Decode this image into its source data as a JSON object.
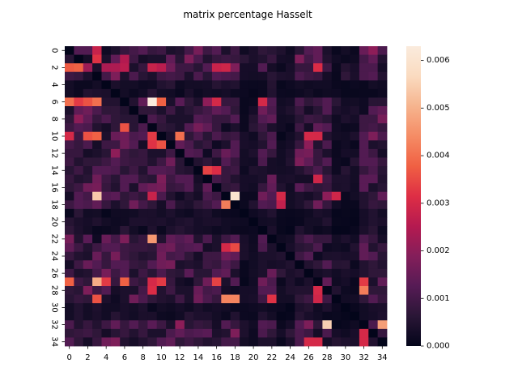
{
  "chart_data": {
    "type": "heatmap",
    "title": "matrix percentage Hasselt",
    "xlabel": "",
    "ylabel": "",
    "x_tick_labels": [
      "0",
      "2",
      "4",
      "6",
      "8",
      "10",
      "12",
      "14",
      "16",
      "18",
      "20",
      "22",
      "24",
      "26",
      "28",
      "30",
      "32",
      "34"
    ],
    "y_tick_labels": [
      "0",
      "2",
      "4",
      "6",
      "8",
      "10",
      "12",
      "14",
      "16",
      "18",
      "20",
      "22",
      "24",
      "26",
      "28",
      "30",
      "32",
      "34"
    ],
    "colorbar": {
      "min": 0.0,
      "max": 0.0063,
      "tick_labels": [
        "0.000",
        "0.001",
        "0.002",
        "0.003",
        "0.004",
        "0.005",
        "0.006"
      ],
      "tick_values": [
        0.0,
        0.001,
        0.002,
        0.003,
        0.004,
        0.005,
        0.006
      ],
      "colormap": "rocket",
      "colormap_stops": [
        "#03051a",
        "#2a1636",
        "#561b55",
        "#841e5a",
        "#b51a50",
        "#de2e45",
        "#f06043",
        "#f58c65",
        "#f6b48e",
        "#fadbc0",
        "#faebdd"
      ]
    },
    "rows": 35,
    "cols": 35,
    "base_values": [
      0.0016,
      0.0008,
      0.0012,
      0.002,
      0.0011,
      0.001,
      0.0018,
      0.0006,
      0.0011,
      0.0014,
      0.0017,
      0.0012,
      0.0008,
      0.0009,
      0.0011,
      0.0007,
      0.0012,
      0.0014,
      0.0011,
      0.0009,
      0.0004,
      0.0009,
      0.0012,
      0.0007,
      0.0008,
      0.0005,
      0.0006,
      0.0008,
      0.0008,
      0.0005,
      0.0005,
      0.0003,
      0.0012,
      0.0008,
      0.0011,
      0.0008,
      0.0011,
      0.0013,
      0.0009,
      0.0012,
      0.0007,
      0.0007,
      0.0008,
      0.0004,
      0.0002,
      0.0003,
      0.0005,
      0.0003,
      0.0006,
      0.0004,
      0.0005,
      0.0004,
      0.0007,
      0.0004,
      0.0009,
      0.0004,
      0.0007,
      0.0009,
      0.0004,
      0.0006,
      0.0005,
      0.0003,
      0.0012,
      0.0009,
      0.0015,
      0.0006,
      0.0008,
      0.0014,
      0.0016,
      0.0007,
      0.0012,
      0.001
    ],
    "highlights": [
      [
        0,
        3,
        0.0028
      ],
      [
        1,
        3,
        0.0032
      ],
      [
        1,
        6,
        0.0025
      ],
      [
        2,
        0,
        0.0037
      ],
      [
        2,
        1,
        0.0038
      ],
      [
        2,
        2,
        0.0022
      ],
      [
        2,
        4,
        0.0024
      ],
      [
        2,
        5,
        0.0024
      ],
      [
        2,
        6,
        0.0026
      ],
      [
        2,
        9,
        0.0028
      ],
      [
        2,
        10,
        0.0026
      ],
      [
        2,
        16,
        0.0028
      ],
      [
        2,
        17,
        0.0029
      ],
      [
        2,
        27,
        0.0031
      ],
      [
        6,
        0,
        0.004
      ],
      [
        6,
        1,
        0.0033
      ],
      [
        6,
        2,
        0.0036
      ],
      [
        6,
        3,
        0.004
      ],
      [
        6,
        9,
        0.0063
      ],
      [
        6,
        10,
        0.0038
      ],
      [
        6,
        16,
        0.003
      ],
      [
        6,
        21,
        0.003
      ],
      [
        9,
        6,
        0.0036
      ],
      [
        10,
        0,
        0.003
      ],
      [
        10,
        2,
        0.0036
      ],
      [
        10,
        3,
        0.0038
      ],
      [
        10,
        9,
        0.0033
      ],
      [
        10,
        12,
        0.004
      ],
      [
        10,
        26,
        0.003
      ],
      [
        10,
        27,
        0.003
      ],
      [
        11,
        9,
        0.0032
      ],
      [
        11,
        10,
        0.0036
      ],
      [
        14,
        15,
        0.0034
      ],
      [
        14,
        16,
        0.0031
      ],
      [
        15,
        27,
        0.0029
      ],
      [
        17,
        3,
        0.0054
      ],
      [
        17,
        18,
        0.006
      ],
      [
        17,
        9,
        0.0028
      ],
      [
        17,
        23,
        0.003
      ],
      [
        17,
        29,
        0.0029
      ],
      [
        18,
        17,
        0.0042
      ],
      [
        18,
        23,
        0.0027
      ],
      [
        22,
        9,
        0.0046
      ],
      [
        23,
        18,
        0.0035
      ],
      [
        23,
        17,
        0.003
      ],
      [
        27,
        0,
        0.0038
      ],
      [
        27,
        3,
        0.0049
      ],
      [
        27,
        4,
        0.0033
      ],
      [
        27,
        6,
        0.0038
      ],
      [
        27,
        9,
        0.003
      ],
      [
        27,
        10,
        0.0033
      ],
      [
        27,
        16,
        0.0034
      ],
      [
        27,
        32,
        0.0033
      ],
      [
        28,
        32,
        0.0042
      ],
      [
        28,
        27,
        0.003
      ],
      [
        28,
        9,
        0.0031
      ],
      [
        29,
        3,
        0.0036
      ],
      [
        29,
        17,
        0.0043
      ],
      [
        29,
        18,
        0.0043
      ],
      [
        29,
        22,
        0.0032
      ],
      [
        29,
        27,
        0.0029
      ],
      [
        32,
        28,
        0.0055
      ],
      [
        32,
        34,
        0.0047
      ],
      [
        33,
        32,
        0.003
      ],
      [
        34,
        26,
        0.003
      ],
      [
        34,
        27,
        0.003
      ],
      [
        34,
        32,
        0.003
      ]
    ],
    "dark_rows": [
      4,
      5,
      19,
      20,
      21,
      30,
      31
    ],
    "dark_cols": [
      19,
      20,
      23,
      24,
      29,
      30,
      31
    ]
  }
}
